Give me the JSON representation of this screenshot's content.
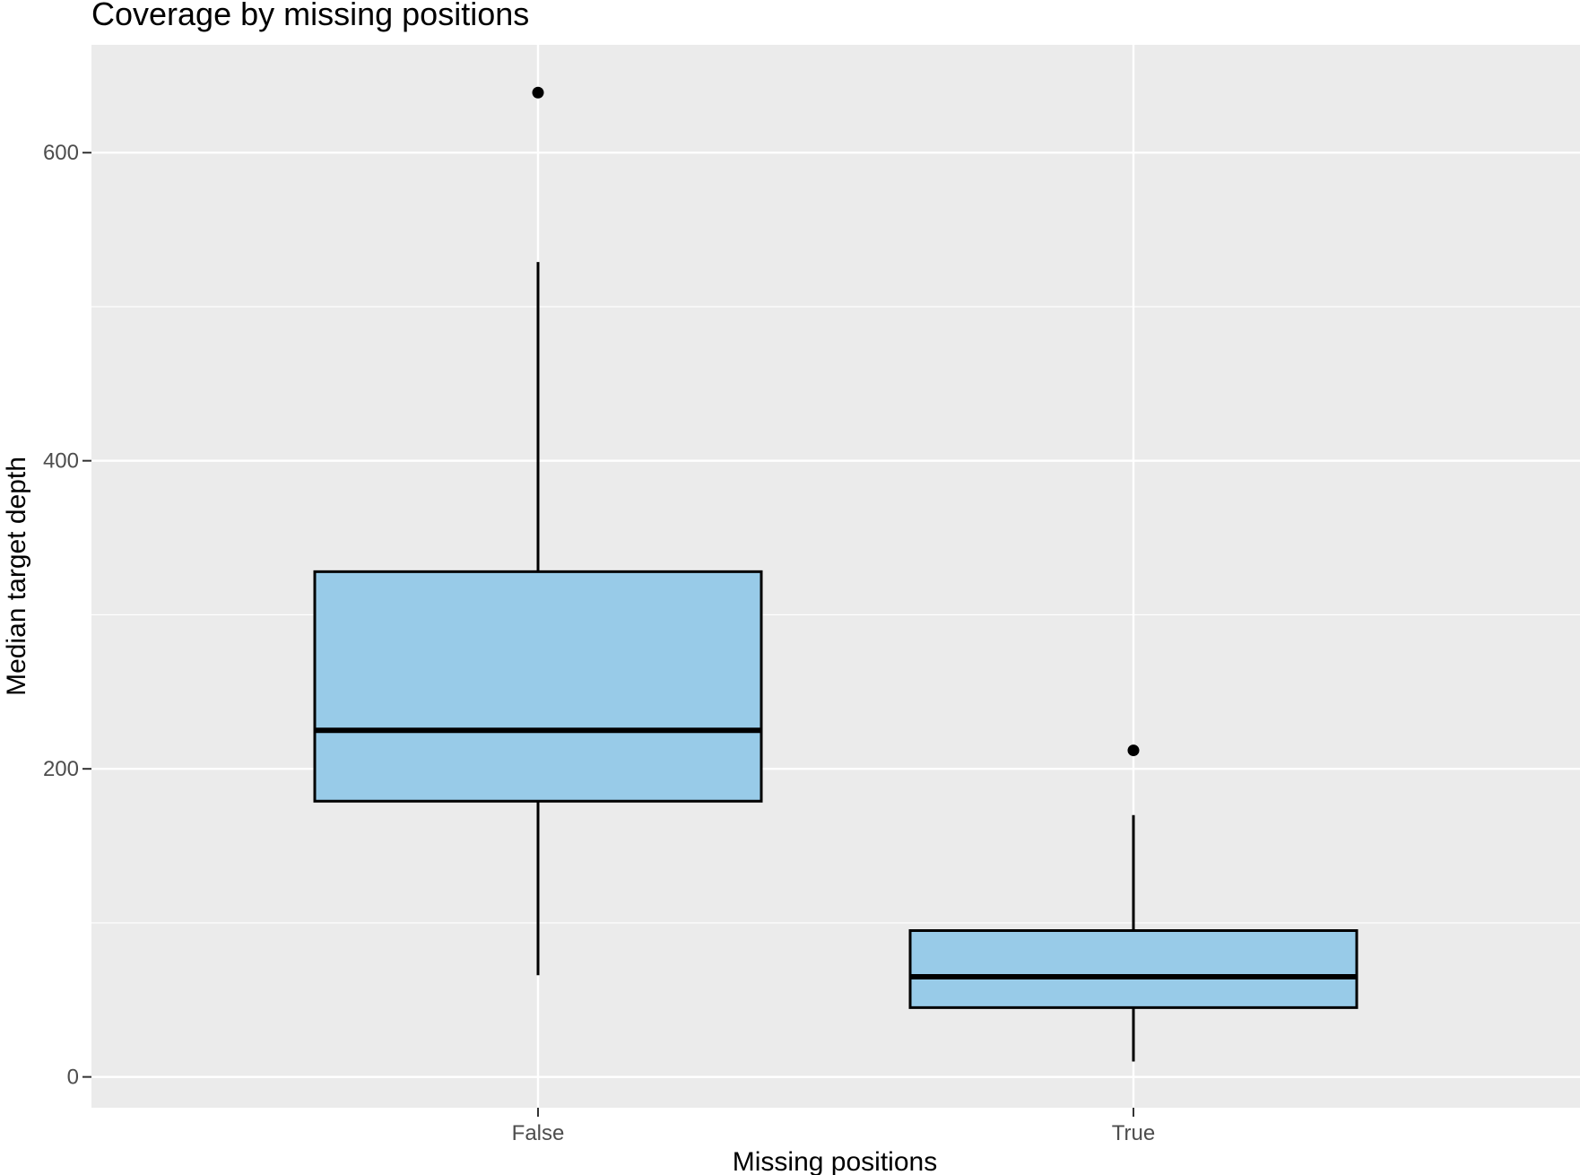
{
  "chart_data": {
    "type": "boxplot",
    "title": "Coverage by missing positions",
    "xlabel": "Missing positions",
    "ylabel": "Median target depth",
    "categories": [
      "False",
      "True"
    ],
    "ylim": [
      -20,
      670
    ],
    "yticks": [
      0,
      200,
      400,
      600
    ],
    "grid": true,
    "boxes": [
      {
        "category": "False",
        "whisker_low": 66,
        "q1": 179,
        "median": 225,
        "q3": 328,
        "whisker_high": 529,
        "outliers": [
          639
        ]
      },
      {
        "category": "True",
        "whisker_low": 10,
        "q1": 45,
        "median": 65,
        "q3": 95,
        "whisker_high": 170,
        "outliers": [
          212
        ]
      }
    ],
    "colors": {
      "panel_background": "#ebebeb",
      "grid": "#ffffff",
      "box_fill": "#98cbe8",
      "box_outline": "#000000",
      "tick_text": "#4d4d4d",
      "tick_mark": "#333333"
    }
  }
}
